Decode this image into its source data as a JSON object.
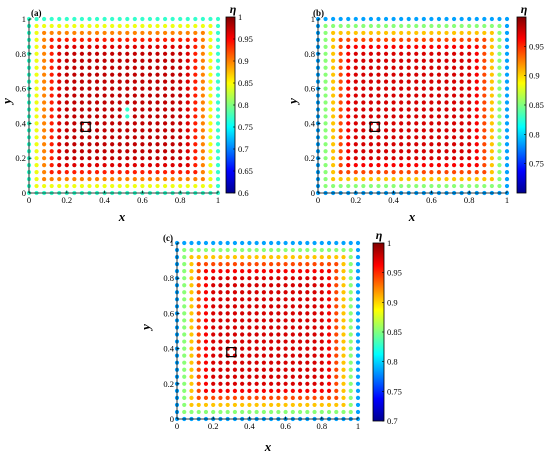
{
  "chart_data": [
    {
      "type": "scatter",
      "panel_label": "(a)",
      "xlabel": "x",
      "ylabel": "y",
      "xlim": [
        0,
        1
      ],
      "ylim": [
        0,
        1
      ],
      "xticks": [
        "0",
        "0.2",
        "0.4",
        "0.6",
        "0.8",
        "1"
      ],
      "yticks": [
        "0",
        "0.2",
        "0.4",
        "0.6",
        "0.8",
        "1"
      ],
      "colorbar": {
        "title": "η",
        "range": [
          0.6,
          1
        ],
        "ticks": [
          "0.6",
          "0.65",
          "0.7",
          "0.75",
          "0.8",
          "0.85",
          "0.9",
          "0.95",
          "1"
        ],
        "colormap": "jet"
      },
      "grid": {
        "n_per_side": 26,
        "spacing": 0.04,
        "start": 0
      },
      "field": {
        "edge_value": 0.77,
        "center_value": 0.975
      },
      "marked_point": {
        "x": 0.3,
        "y": 0.38
      },
      "anomaly": {
        "x": 0.52,
        "y": 0.46
      }
    },
    {
      "type": "scatter",
      "panel_label": "(b)",
      "xlabel": "x",
      "ylabel": "y",
      "xlim": [
        0,
        1
      ],
      "ylim": [
        0,
        1
      ],
      "xticks": [
        "0",
        "0.2",
        "0.4",
        "0.6",
        "0.8",
        "1"
      ],
      "yticks": [
        "0",
        "0.2",
        "0.4",
        "0.6",
        "0.8",
        "1"
      ],
      "colorbar": {
        "title": "η",
        "range": [
          0.7,
          1
        ],
        "ticks": [
          "0.75",
          "0.8",
          "0.85",
          "0.9",
          "0.95"
        ],
        "colormap": "jet"
      },
      "grid": {
        "n_per_side": 26,
        "spacing": 0.04,
        "start": 0
      },
      "field": {
        "edge_value": 0.785,
        "center_value": 0.975
      },
      "marked_point": {
        "x": 0.3,
        "y": 0.38
      }
    },
    {
      "type": "scatter",
      "panel_label": "(c)",
      "xlabel": "x",
      "ylabel": "y",
      "xlim": [
        0,
        1
      ],
      "ylim": [
        0,
        1
      ],
      "xticks": [
        "0",
        "0.2",
        "0.4",
        "0.6",
        "0.8",
        "1"
      ],
      "yticks": [
        "0",
        "0.2",
        "0.4",
        "0.6",
        "0.8",
        "1"
      ],
      "colorbar": {
        "title": "η",
        "range": [
          0.7,
          1
        ],
        "ticks": [
          "0.7",
          "0.75",
          "0.8",
          "0.85",
          "0.9",
          "0.95",
          "1"
        ],
        "colormap": "jet"
      },
      "grid": {
        "n_per_side": 26,
        "spacing": 0.04,
        "start": 0
      },
      "field": {
        "edge_value": 0.785,
        "center_value": 0.975
      },
      "marked_point": {
        "x": 0.3,
        "y": 0.38
      }
    }
  ]
}
